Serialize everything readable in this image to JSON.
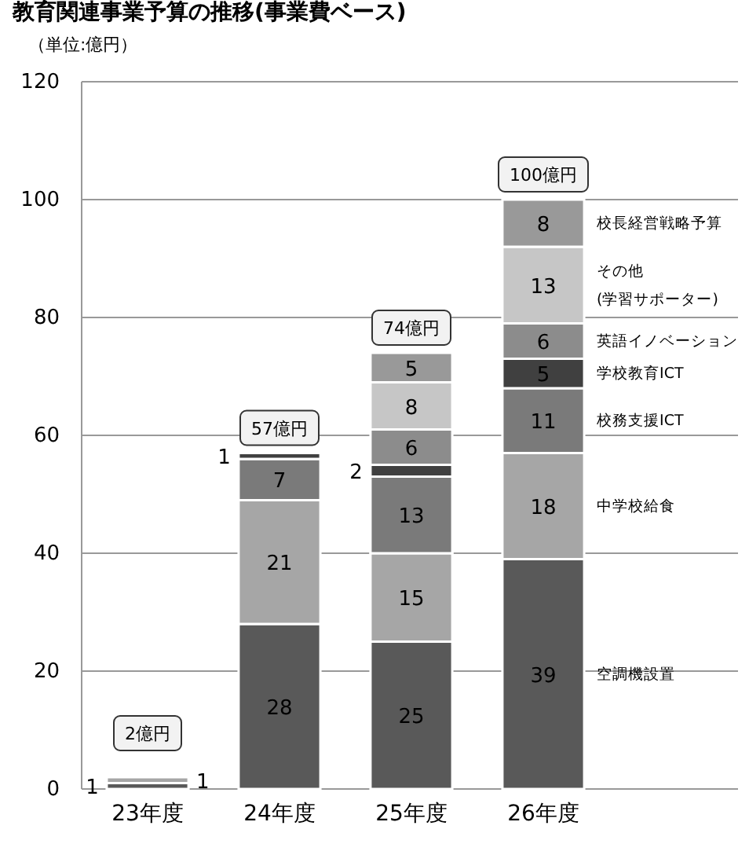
{
  "chart_data": {
    "type": "bar",
    "stacked": true,
    "title": "教育関連事業予算の推移(事業費ベース)",
    "ylabel": "（単位:億円）",
    "categories": [
      "23年度",
      "24年度",
      "25年度",
      "26年度"
    ],
    "series": [
      {
        "name": "空調機設置",
        "color": "#595959",
        "values": [
          1,
          28,
          25,
          39
        ]
      },
      {
        "name": "中学校給食",
        "color": "#a6a6a6",
        "values": [
          1,
          21,
          15,
          18
        ]
      },
      {
        "name": "校務支援ICT",
        "color": "#7a7a7a",
        "values": [
          null,
          7,
          13,
          11
        ]
      },
      {
        "name": "学校教育ICT",
        "color": "#404040",
        "values": [
          null,
          1,
          2,
          5
        ]
      },
      {
        "name": "英語イノベーション",
        "color": "#8c8c8c",
        "values": [
          null,
          null,
          6,
          6
        ]
      },
      {
        "name": "その他\n(学習サポーター)",
        "color": "#c6c6c6",
        "values": [
          null,
          null,
          8,
          13
        ]
      },
      {
        "name": "校長経営戦略予算",
        "color": "#999999",
        "values": [
          null,
          null,
          5,
          8
        ]
      }
    ],
    "totals": [
      "2億円",
      "57億円",
      "74億円",
      "100億円"
    ],
    "data_labels": true,
    "ylim": [
      0,
      120
    ],
    "yticks": [
      0,
      20,
      40,
      60,
      80,
      100,
      120
    ],
    "grid": "y"
  }
}
